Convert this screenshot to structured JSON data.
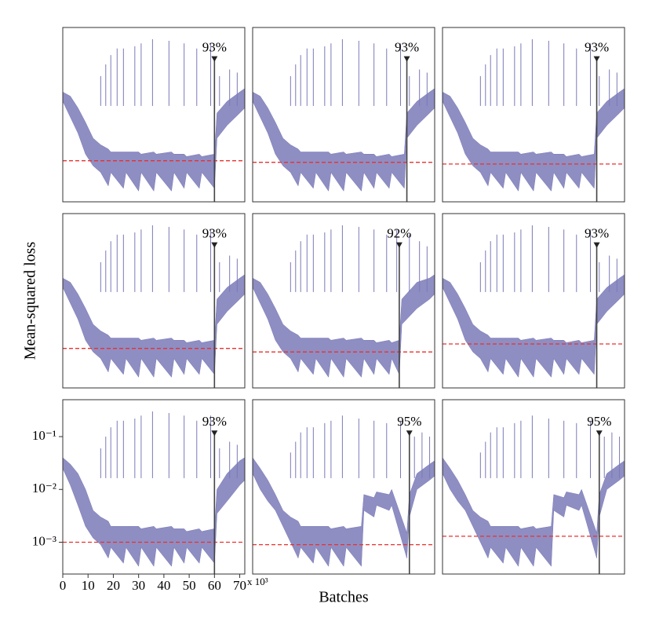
{
  "figure": {
    "xlabel": "Batches",
    "ylabel": "Mean-squared loss",
    "x_multiplier": "x 10³"
  },
  "chart_data": [
    {
      "type": "band",
      "color": "#7a7ab8",
      "log_y": true,
      "xlim": [
        0,
        72
      ],
      "ylim": [
        0.00025,
        0.5
      ],
      "x": [
        0,
        3,
        6,
        9,
        12,
        15,
        18,
        19,
        24,
        25,
        30,
        31,
        36,
        37,
        43,
        44,
        48,
        49,
        54,
        55,
        60,
        61,
        65,
        70,
        72
      ],
      "upper": [
        0.03,
        0.025,
        0.015,
        0.008,
        0.004,
        0.003,
        0.0025,
        0.0022,
        0.0022,
        0.0022,
        0.0022,
        0.002,
        0.0022,
        0.002,
        0.0022,
        0.002,
        0.002,
        0.0018,
        0.002,
        0.0018,
        0.002,
        0.012,
        0.02,
        0.03,
        0.035
      ],
      "lower": [
        0.02,
        0.01,
        0.005,
        0.002,
        0.0012,
        0.0009,
        0.0005,
        0.0009,
        0.00045,
        0.0009,
        0.0004,
        0.0009,
        0.0004,
        0.0009,
        0.0004,
        0.0009,
        0.00045,
        0.0009,
        0.00045,
        0.0009,
        0.00045,
        0.004,
        0.007,
        0.012,
        0.015
      ],
      "spikes_x": [
        15,
        17,
        19,
        21.5,
        24,
        28.5,
        31,
        35.5,
        42,
        48,
        53,
        58.5,
        62,
        66,
        69
      ],
      "spikes": [
        0.06,
        0.1,
        0.15,
        0.2,
        0.2,
        0.22,
        0.25,
        0.3,
        0.28,
        0.25,
        0.2,
        0.25,
        0.06,
        0.08,
        0.07
      ],
      "threshold": 0.0015,
      "threshold_color": "#e8312f",
      "marker_x": 60,
      "marker_y": 0.12,
      "marker_label": "93%"
    },
    {
      "type": "band",
      "color": "#7a7ab8",
      "log_y": true,
      "xlim": [
        0,
        72
      ],
      "ylim": [
        0.00025,
        0.5
      ],
      "x": [
        0,
        3,
        6,
        9,
        12,
        15,
        18,
        19,
        24,
        25,
        30,
        31,
        36,
        37,
        43,
        44,
        48,
        49,
        54,
        55,
        60,
        61,
        65,
        70,
        72
      ],
      "upper": [
        0.03,
        0.025,
        0.015,
        0.008,
        0.004,
        0.003,
        0.0025,
        0.0022,
        0.0022,
        0.0022,
        0.0022,
        0.002,
        0.0022,
        0.002,
        0.0022,
        0.002,
        0.002,
        0.0018,
        0.002,
        0.0018,
        0.002,
        0.012,
        0.02,
        0.03,
        0.035
      ],
      "lower": [
        0.02,
        0.01,
        0.005,
        0.002,
        0.0012,
        0.0009,
        0.0005,
        0.0009,
        0.00045,
        0.0009,
        0.0004,
        0.0009,
        0.0004,
        0.0009,
        0.0004,
        0.0009,
        0.00045,
        0.0009,
        0.00045,
        0.0009,
        0.00045,
        0.004,
        0.007,
        0.012,
        0.015
      ],
      "spikes_x": [
        15,
        17,
        19,
        21.5,
        24,
        28.5,
        31,
        35.5,
        42,
        48,
        53,
        58.5,
        62,
        66,
        69
      ],
      "spikes": [
        0.06,
        0.1,
        0.15,
        0.2,
        0.2,
        0.22,
        0.25,
        0.3,
        0.28,
        0.25,
        0.2,
        0.25,
        0.06,
        0.08,
        0.07
      ],
      "threshold": 0.0014,
      "threshold_color": "#e8312f",
      "marker_x": 61,
      "marker_y": 0.12,
      "marker_label": "93%"
    },
    {
      "type": "band",
      "color": "#7a7ab8",
      "log_y": true,
      "xlim": [
        0,
        72
      ],
      "ylim": [
        0.00025,
        0.5
      ],
      "x": [
        0,
        3,
        6,
        9,
        12,
        15,
        18,
        19,
        24,
        25,
        30,
        31,
        36,
        37,
        43,
        44,
        48,
        49,
        54,
        55,
        60,
        61,
        65,
        70,
        72
      ],
      "upper": [
        0.03,
        0.025,
        0.015,
        0.008,
        0.004,
        0.003,
        0.0025,
        0.0022,
        0.0022,
        0.0022,
        0.0022,
        0.002,
        0.0022,
        0.002,
        0.0022,
        0.002,
        0.002,
        0.0018,
        0.002,
        0.0018,
        0.002,
        0.012,
        0.02,
        0.03,
        0.035
      ],
      "lower": [
        0.02,
        0.01,
        0.005,
        0.002,
        0.0012,
        0.0009,
        0.0005,
        0.0009,
        0.00045,
        0.0009,
        0.0004,
        0.0009,
        0.0004,
        0.0009,
        0.0004,
        0.0009,
        0.00045,
        0.0009,
        0.00045,
        0.0009,
        0.00045,
        0.004,
        0.007,
        0.012,
        0.015
      ],
      "spikes_x": [
        15,
        17,
        19,
        21.5,
        24,
        28.5,
        31,
        35.5,
        42,
        48,
        53,
        58.5,
        62,
        66,
        69
      ],
      "spikes": [
        0.06,
        0.1,
        0.15,
        0.2,
        0.2,
        0.22,
        0.25,
        0.3,
        0.28,
        0.25,
        0.2,
        0.25,
        0.06,
        0.08,
        0.07
      ],
      "threshold": 0.0013,
      "threshold_color": "#e8312f",
      "marker_x": 61,
      "marker_y": 0.12,
      "marker_label": "93%"
    },
    {
      "type": "band",
      "color": "#7a7ab8",
      "log_y": true,
      "xlim": [
        0,
        72
      ],
      "ylim": [
        0.00025,
        0.5
      ],
      "x": [
        0,
        3,
        6,
        9,
        12,
        15,
        18,
        19,
        24,
        25,
        30,
        31,
        36,
        37,
        43,
        44,
        48,
        49,
        54,
        55,
        60,
        61,
        65,
        70,
        72
      ],
      "upper": [
        0.03,
        0.025,
        0.015,
        0.008,
        0.004,
        0.003,
        0.0025,
        0.0022,
        0.0022,
        0.0022,
        0.0022,
        0.002,
        0.0022,
        0.002,
        0.0022,
        0.002,
        0.002,
        0.0018,
        0.002,
        0.0018,
        0.002,
        0.012,
        0.02,
        0.03,
        0.035
      ],
      "lower": [
        0.02,
        0.01,
        0.005,
        0.002,
        0.0012,
        0.0009,
        0.0005,
        0.0009,
        0.00045,
        0.0009,
        0.0004,
        0.0009,
        0.0004,
        0.0009,
        0.0004,
        0.0009,
        0.00045,
        0.0009,
        0.00045,
        0.0009,
        0.00045,
        0.004,
        0.007,
        0.012,
        0.015
      ],
      "spikes_x": [
        15,
        17,
        19,
        21.5,
        24,
        28.5,
        31,
        35.5,
        42,
        48,
        53,
        58.5,
        62,
        66,
        69
      ],
      "spikes": [
        0.06,
        0.1,
        0.15,
        0.2,
        0.2,
        0.22,
        0.25,
        0.3,
        0.28,
        0.25,
        0.2,
        0.25,
        0.06,
        0.08,
        0.07
      ],
      "threshold": 0.0014,
      "threshold_color": "#e8312f",
      "marker_x": 60,
      "marker_y": 0.12,
      "marker_label": "93%"
    },
    {
      "type": "band",
      "color": "#7a7ab8",
      "log_y": true,
      "xlim": [
        0,
        72
      ],
      "ylim": [
        0.00025,
        0.5
      ],
      "x": [
        0,
        3,
        6,
        9,
        12,
        15,
        18,
        19,
        24,
        25,
        30,
        31,
        36,
        37,
        43,
        44,
        48,
        49,
        54,
        55,
        58,
        59,
        65,
        70,
        72
      ],
      "upper": [
        0.03,
        0.025,
        0.015,
        0.008,
        0.004,
        0.003,
        0.0025,
        0.0022,
        0.0022,
        0.0022,
        0.0022,
        0.002,
        0.0022,
        0.002,
        0.0022,
        0.002,
        0.002,
        0.0018,
        0.002,
        0.0018,
        0.002,
        0.012,
        0.025,
        0.03,
        0.035
      ],
      "lower": [
        0.02,
        0.01,
        0.005,
        0.002,
        0.0012,
        0.0009,
        0.0005,
        0.0009,
        0.00045,
        0.0009,
        0.0004,
        0.0009,
        0.0004,
        0.0009,
        0.0004,
        0.0009,
        0.00045,
        0.0009,
        0.00045,
        0.0009,
        0.00045,
        0.004,
        0.008,
        0.012,
        0.015
      ],
      "spikes_x": [
        15,
        17,
        19,
        21.5,
        24,
        28.5,
        31,
        35.5,
        42,
        48,
        53,
        57,
        62,
        66,
        69
      ],
      "spikes": [
        0.06,
        0.1,
        0.15,
        0.2,
        0.2,
        0.22,
        0.25,
        0.3,
        0.28,
        0.25,
        0.2,
        0.25,
        0.2,
        0.15,
        0.12
      ],
      "threshold": 0.0012,
      "threshold_color": "#e8312f",
      "marker_x": 58,
      "marker_y": 0.12,
      "marker_label": "92%"
    },
    {
      "type": "band",
      "color": "#7a7ab8",
      "log_y": true,
      "xlim": [
        0,
        72
      ],
      "ylim": [
        0.00025,
        0.5
      ],
      "x": [
        0,
        3,
        6,
        9,
        12,
        15,
        18,
        19,
        24,
        25,
        30,
        31,
        36,
        37,
        43,
        44,
        48,
        49,
        54,
        55,
        60,
        61,
        65,
        70,
        72
      ],
      "upper": [
        0.03,
        0.025,
        0.015,
        0.008,
        0.004,
        0.003,
        0.0025,
        0.0022,
        0.0022,
        0.0022,
        0.0022,
        0.002,
        0.0022,
        0.002,
        0.0022,
        0.002,
        0.002,
        0.0018,
        0.002,
        0.0018,
        0.002,
        0.012,
        0.02,
        0.03,
        0.035
      ],
      "lower": [
        0.02,
        0.01,
        0.005,
        0.002,
        0.0012,
        0.0009,
        0.0005,
        0.0009,
        0.00045,
        0.0009,
        0.0004,
        0.0009,
        0.0004,
        0.0009,
        0.0004,
        0.0009,
        0.00045,
        0.0009,
        0.00045,
        0.0009,
        0.00045,
        0.004,
        0.007,
        0.012,
        0.015
      ],
      "spikes_x": [
        15,
        17,
        19,
        21.5,
        24,
        28.5,
        31,
        35.5,
        42,
        48,
        53,
        58.5,
        62,
        66,
        69
      ],
      "spikes": [
        0.06,
        0.1,
        0.15,
        0.2,
        0.2,
        0.22,
        0.25,
        0.3,
        0.28,
        0.25,
        0.2,
        0.25,
        0.06,
        0.08,
        0.07
      ],
      "threshold": 0.0017,
      "threshold_color": "#e8312f",
      "marker_x": 61,
      "marker_y": 0.12,
      "marker_label": "93%"
    },
    {
      "type": "band",
      "color": "#7a7ab8",
      "log_y": true,
      "xlim": [
        0,
        72
      ],
      "ylim": [
        0.00025,
        0.5
      ],
      "xticks": [
        0,
        10,
        20,
        30,
        40,
        50,
        60,
        70
      ],
      "yticks": [
        {
          "value": 0.001,
          "label": "10⁻³"
        },
        {
          "value": 0.01,
          "label": "10⁻²"
        },
        {
          "value": 0.1,
          "label": "10⁻¹"
        }
      ],
      "x": [
        0,
        3,
        6,
        9,
        12,
        15,
        18,
        19,
        24,
        25,
        30,
        31,
        36,
        37,
        43,
        44,
        48,
        49,
        54,
        55,
        60,
        61,
        65,
        70,
        72
      ],
      "upper": [
        0.04,
        0.03,
        0.02,
        0.01,
        0.004,
        0.003,
        0.0025,
        0.002,
        0.002,
        0.002,
        0.002,
        0.0018,
        0.002,
        0.0018,
        0.002,
        0.0018,
        0.0018,
        0.0016,
        0.0018,
        0.0016,
        0.0018,
        0.01,
        0.02,
        0.035,
        0.04
      ],
      "lower": [
        0.025,
        0.012,
        0.005,
        0.002,
        0.0012,
        0.0009,
        0.0005,
        0.0008,
        0.0004,
        0.0008,
        0.00035,
        0.0008,
        0.00035,
        0.0008,
        0.00035,
        0.0008,
        0.0004,
        0.0008,
        0.0004,
        0.0008,
        0.0004,
        0.0035,
        0.006,
        0.012,
        0.015
      ],
      "spikes_x": [
        15,
        17,
        19,
        21.5,
        24,
        28.5,
        31,
        35.5,
        42,
        48,
        53,
        58.5,
        62,
        66,
        69
      ],
      "spikes": [
        0.06,
        0.1,
        0.15,
        0.2,
        0.2,
        0.22,
        0.25,
        0.3,
        0.28,
        0.25,
        0.2,
        0.25,
        0.06,
        0.08,
        0.07
      ],
      "threshold": 0.001,
      "threshold_color": "#e8312f",
      "marker_x": 60,
      "marker_y": 0.11,
      "marker_label": "93%"
    },
    {
      "type": "band",
      "color": "#7a7ab8",
      "log_y": true,
      "xlim": [
        0,
        72
      ],
      "ylim": [
        0.00025,
        0.5
      ],
      "x": [
        0,
        3,
        6,
        9,
        12,
        15,
        18,
        19,
        24,
        25,
        30,
        31,
        36,
        37,
        43,
        44,
        48,
        49,
        54,
        55,
        61,
        62,
        65,
        70,
        72
      ],
      "upper": [
        0.04,
        0.025,
        0.015,
        0.008,
        0.004,
        0.003,
        0.0025,
        0.002,
        0.002,
        0.002,
        0.002,
        0.0018,
        0.002,
        0.0018,
        0.002,
        0.008,
        0.007,
        0.009,
        0.008,
        0.01,
        0.0015,
        0.008,
        0.02,
        0.03,
        0.035
      ],
      "lower": [
        0.02,
        0.01,
        0.006,
        0.004,
        0.002,
        0.001,
        0.0005,
        0.0008,
        0.0004,
        0.0008,
        0.00035,
        0.0008,
        0.00035,
        0.0008,
        0.00035,
        0.004,
        0.003,
        0.005,
        0.004,
        0.005,
        0.0005,
        0.003,
        0.01,
        0.015,
        0.018
      ],
      "spikes_x": [
        15,
        17,
        19,
        21.5,
        24,
        28.5,
        31,
        35.5,
        42,
        48,
        53,
        58.5,
        64,
        67,
        70
      ],
      "spikes": [
        0.05,
        0.08,
        0.12,
        0.15,
        0.15,
        0.18,
        0.2,
        0.25,
        0.22,
        0.2,
        0.18,
        0.2,
        0.1,
        0.12,
        0.1
      ],
      "threshold": 0.0009,
      "threshold_color": "#e8312f",
      "marker_x": 62,
      "marker_y": 0.11,
      "marker_label": "95%"
    },
    {
      "type": "band",
      "color": "#7a7ab8",
      "log_y": true,
      "xlim": [
        0,
        72
      ],
      "ylim": [
        0.00025,
        0.5
      ],
      "x": [
        0,
        3,
        6,
        9,
        12,
        15,
        18,
        19,
        24,
        25,
        30,
        31,
        36,
        37,
        43,
        44,
        48,
        49,
        54,
        55,
        61,
        62,
        65,
        70,
        72
      ],
      "upper": [
        0.04,
        0.025,
        0.015,
        0.008,
        0.004,
        0.003,
        0.0025,
        0.002,
        0.002,
        0.002,
        0.002,
        0.0018,
        0.002,
        0.0018,
        0.002,
        0.008,
        0.007,
        0.009,
        0.008,
        0.01,
        0.0015,
        0.008,
        0.02,
        0.03,
        0.035
      ],
      "lower": [
        0.02,
        0.01,
        0.006,
        0.004,
        0.002,
        0.001,
        0.0005,
        0.0008,
        0.0004,
        0.0008,
        0.00035,
        0.0008,
        0.00035,
        0.0008,
        0.00035,
        0.004,
        0.003,
        0.005,
        0.004,
        0.005,
        0.0005,
        0.003,
        0.01,
        0.015,
        0.018
      ],
      "spikes_x": [
        15,
        17,
        19,
        21.5,
        24,
        28.5,
        31,
        35.5,
        42,
        48,
        53,
        58.5,
        64,
        67,
        70
      ],
      "spikes": [
        0.05,
        0.08,
        0.12,
        0.15,
        0.15,
        0.18,
        0.2,
        0.25,
        0.22,
        0.2,
        0.18,
        0.2,
        0.1,
        0.12,
        0.1
      ],
      "threshold": 0.0013,
      "threshold_color": "#e8312f",
      "marker_x": 62,
      "marker_y": 0.11,
      "marker_label": "95%"
    }
  ]
}
